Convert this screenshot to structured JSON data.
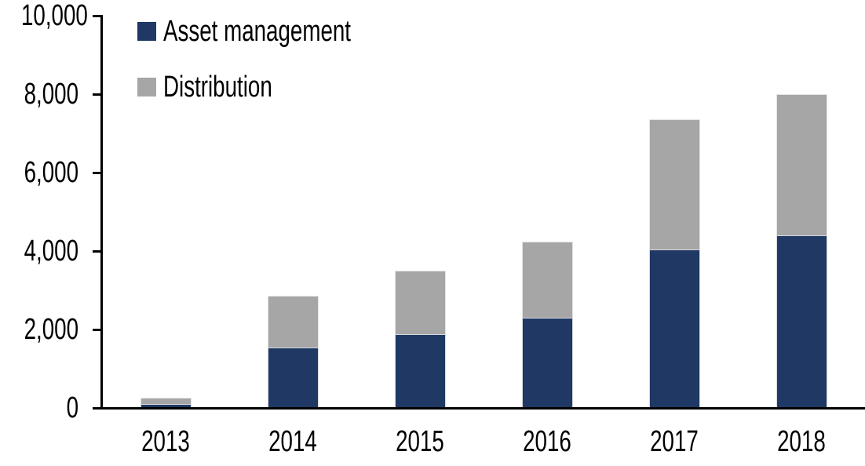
{
  "chart_data": {
    "type": "bar",
    "stacked": true,
    "title": "",
    "xlabel": "",
    "ylabel": "",
    "categories": [
      "2013",
      "2014",
      "2015",
      "2016",
      "2017",
      "2018"
    ],
    "series": [
      {
        "name": "Asset management",
        "color": "#1F3864",
        "values": [
          100,
          1540,
          1880,
          2300,
          4040,
          4400
        ]
      },
      {
        "name": "Distribution",
        "color": "#A6A6A6",
        "values": [
          160,
          1320,
          1620,
          1940,
          3320,
          3600
        ]
      }
    ],
    "totals": [
      260,
      2860,
      3500,
      4240,
      7360,
      8000
    ],
    "ylim": [
      0,
      10000
    ],
    "ytick_interval": 2000,
    "ytick_labels": [
      "0",
      "2,000",
      "4,000",
      "6,000",
      "8,000",
      "10,000"
    ],
    "grid": false,
    "legend_position": "top-left",
    "axis_color": "#000000",
    "text_color": "#000000",
    "background_color": "#FFFFFF"
  }
}
